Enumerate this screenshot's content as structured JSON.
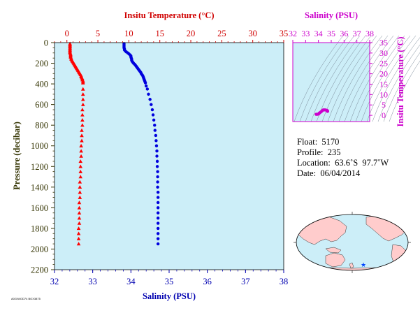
{
  "chart_data": [
    {
      "type": "scatter",
      "title": "",
      "xlabel_top": "Insitu Temperature (°C)",
      "xlabel_bottom": "Salinity (PSU)",
      "ylabel": "Pressure (decibar)",
      "top_axis": {
        "range": [
          -2,
          35
        ],
        "ticks": [
          "0",
          "5",
          "10",
          "15",
          "20",
          "25",
          "30",
          "35"
        ],
        "tick_values": [
          0,
          5,
          10,
          15,
          20,
          25,
          30,
          35
        ],
        "color": "#d00000"
      },
      "bottom_axis": {
        "range": [
          32,
          38
        ],
        "ticks": [
          "32",
          "33",
          "34",
          "35",
          "36",
          "37",
          "38"
        ],
        "tick_values": [
          32,
          33,
          34,
          35,
          36,
          37,
          38
        ],
        "color": "#0000b0"
      },
      "y_axis": {
        "range": [
          0,
          2200
        ],
        "inverted": true,
        "ticks": [
          "0",
          "200",
          "400",
          "600",
          "800",
          "1000",
          "1200",
          "1400",
          "1600",
          "1800",
          "2000",
          "2200"
        ],
        "tick_values": [
          0,
          200,
          400,
          600,
          800,
          1000,
          1200,
          1400,
          1600,
          1800,
          2000,
          2200
        ],
        "color": "#333300"
      },
      "background": "#cceef8",
      "series": [
        {
          "variable": "temperature",
          "marker": "triangle",
          "color": "#ff0000",
          "points": [
            [
              0.5,
              10
            ],
            [
              0.5,
              20
            ],
            [
              0.5,
              30
            ],
            [
              0.5,
              40
            ],
            [
              0.5,
              50
            ],
            [
              0.5,
              60
            ],
            [
              0.5,
              70
            ],
            [
              0.5,
              80
            ],
            [
              0.5,
              90
            ],
            [
              0.5,
              100
            ],
            [
              0.6,
              110
            ],
            [
              0.6,
              120
            ],
            [
              0.6,
              130
            ],
            [
              0.6,
              140
            ],
            [
              0.7,
              150
            ],
            [
              0.7,
              160
            ],
            [
              0.8,
              170
            ],
            [
              0.9,
              180
            ],
            [
              1.0,
              190
            ],
            [
              1.1,
              200
            ],
            [
              1.2,
              210
            ],
            [
              1.3,
              220
            ],
            [
              1.4,
              230
            ],
            [
              1.5,
              240
            ],
            [
              1.6,
              250
            ],
            [
              1.7,
              260
            ],
            [
              1.8,
              270
            ],
            [
              1.9,
              280
            ],
            [
              2.0,
              290
            ],
            [
              2.1,
              300
            ],
            [
              2.2,
              310
            ],
            [
              2.3,
              320
            ],
            [
              2.3,
              330
            ],
            [
              2.4,
              340
            ],
            [
              2.5,
              350
            ],
            [
              2.5,
              360
            ],
            [
              2.6,
              370
            ],
            [
              2.6,
              380
            ],
            [
              2.6,
              390
            ],
            [
              2.6,
              450
            ],
            [
              2.6,
              500
            ],
            [
              2.6,
              550
            ],
            [
              2.6,
              600
            ],
            [
              2.5,
              650
            ],
            [
              2.5,
              700
            ],
            [
              2.5,
              750
            ],
            [
              2.5,
              800
            ],
            [
              2.4,
              850
            ],
            [
              2.4,
              900
            ],
            [
              2.4,
              950
            ],
            [
              2.3,
              1000
            ],
            [
              2.3,
              1050
            ],
            [
              2.3,
              1100
            ],
            [
              2.2,
              1150
            ],
            [
              2.2,
              1200
            ],
            [
              2.2,
              1250
            ],
            [
              2.2,
              1300
            ],
            [
              2.1,
              1350
            ],
            [
              2.1,
              1400
            ],
            [
              2.1,
              1450
            ],
            [
              2.1,
              1500
            ],
            [
              2.0,
              1550
            ],
            [
              2.0,
              1600
            ],
            [
              2.0,
              1650
            ],
            [
              2.0,
              1700
            ],
            [
              2.0,
              1750
            ],
            [
              1.9,
              1800
            ],
            [
              1.9,
              1850
            ],
            [
              1.9,
              1900
            ],
            [
              1.9,
              1950
            ]
          ]
        },
        {
          "variable": "salinity",
          "marker": "circle",
          "color": "#0000dd",
          "points": [
            [
              33.82,
              10
            ],
            [
              33.82,
              20
            ],
            [
              33.82,
              30
            ],
            [
              33.82,
              40
            ],
            [
              33.82,
              50
            ],
            [
              33.83,
              60
            ],
            [
              33.83,
              70
            ],
            [
              33.85,
              80
            ],
            [
              33.88,
              90
            ],
            [
              33.92,
              100
            ],
            [
              33.95,
              110
            ],
            [
              33.98,
              120
            ],
            [
              34.0,
              130
            ],
            [
              34.0,
              140
            ],
            [
              34.01,
              150
            ],
            [
              34.02,
              160
            ],
            [
              34.02,
              170
            ],
            [
              34.03,
              180
            ],
            [
              34.05,
              190
            ],
            [
              34.07,
              200
            ],
            [
              34.1,
              210
            ],
            [
              34.12,
              220
            ],
            [
              34.14,
              230
            ],
            [
              34.16,
              240
            ],
            [
              34.18,
              250
            ],
            [
              34.2,
              260
            ],
            [
              34.22,
              270
            ],
            [
              34.24,
              280
            ],
            [
              34.26,
              290
            ],
            [
              34.27,
              300
            ],
            [
              34.29,
              310
            ],
            [
              34.31,
              320
            ],
            [
              34.32,
              330
            ],
            [
              34.33,
              340
            ],
            [
              34.34,
              350
            ],
            [
              34.35,
              360
            ],
            [
              34.36,
              370
            ],
            [
              34.37,
              380
            ],
            [
              34.38,
              390
            ],
            [
              34.4,
              420
            ],
            [
              34.43,
              450
            ],
            [
              34.46,
              500
            ],
            [
              34.5,
              550
            ],
            [
              34.53,
              600
            ],
            [
              34.56,
              650
            ],
            [
              34.58,
              700
            ],
            [
              34.6,
              750
            ],
            [
              34.62,
              800
            ],
            [
              34.63,
              850
            ],
            [
              34.65,
              900
            ],
            [
              34.66,
              950
            ],
            [
              34.67,
              1000
            ],
            [
              34.68,
              1050
            ],
            [
              34.68,
              1100
            ],
            [
              34.69,
              1150
            ],
            [
              34.69,
              1200
            ],
            [
              34.7,
              1250
            ],
            [
              34.7,
              1300
            ],
            [
              34.7,
              1350
            ],
            [
              34.7,
              1400
            ],
            [
              34.71,
              1450
            ],
            [
              34.71,
              1500
            ],
            [
              34.71,
              1550
            ],
            [
              34.71,
              1600
            ],
            [
              34.71,
              1650
            ],
            [
              34.71,
              1700
            ],
            [
              34.71,
              1750
            ],
            [
              34.71,
              1800
            ],
            [
              34.71,
              1850
            ],
            [
              34.71,
              1900
            ],
            [
              34.71,
              1950
            ]
          ]
        }
      ]
    },
    {
      "type": "scatter",
      "title": "",
      "xlabel": "Salinity (PSU)",
      "ylabel": "Insitu Temperature (°C)",
      "x_axis": {
        "range": [
          32,
          38
        ],
        "ticks": [
          "32",
          "33",
          "34",
          "35",
          "36",
          "37",
          "38"
        ],
        "tick_values": [
          32,
          33,
          34,
          35,
          36,
          37,
          38
        ]
      },
      "y_axis": {
        "range": [
          -3,
          35
        ],
        "ticks": [
          "0",
          "5",
          "10",
          "15",
          "20",
          "25",
          "30",
          "35"
        ],
        "tick_values": [
          0,
          5,
          10,
          15,
          20,
          25,
          30,
          35
        ]
      },
      "color": "#cc00cc",
      "background": "#cceef8",
      "density_contours": true,
      "points": [
        [
          33.82,
          0.5
        ],
        [
          33.85,
          0.5
        ],
        [
          33.92,
          0.5
        ],
        [
          34.0,
          0.6
        ],
        [
          34.03,
          0.8
        ],
        [
          34.07,
          1.1
        ],
        [
          34.12,
          1.3
        ],
        [
          34.18,
          1.6
        ],
        [
          34.24,
          1.9
        ],
        [
          34.29,
          2.2
        ],
        [
          34.34,
          2.5
        ],
        [
          34.38,
          2.6
        ],
        [
          34.46,
          2.6
        ],
        [
          34.53,
          2.6
        ],
        [
          34.6,
          2.5
        ],
        [
          34.65,
          2.4
        ],
        [
          34.68,
          2.3
        ],
        [
          34.7,
          2.2
        ],
        [
          34.71,
          2.1
        ],
        [
          34.71,
          2.0
        ],
        [
          34.71,
          1.9
        ]
      ]
    }
  ],
  "float_info": {
    "float": "Float:  5170",
    "profile": "Profile:  235",
    "location": "Location:  63.6˚S  97.7˚W",
    "date": "Date:  06/04/2014"
  },
  "map": {
    "marker_color": "#0044ff",
    "marker_lat": -63.6,
    "marker_lon": -97.7,
    "ocean_color": "#cceef8",
    "land_color": "#ffcccc"
  },
  "footer_tag": "A0G/WOD74 BOX3875"
}
